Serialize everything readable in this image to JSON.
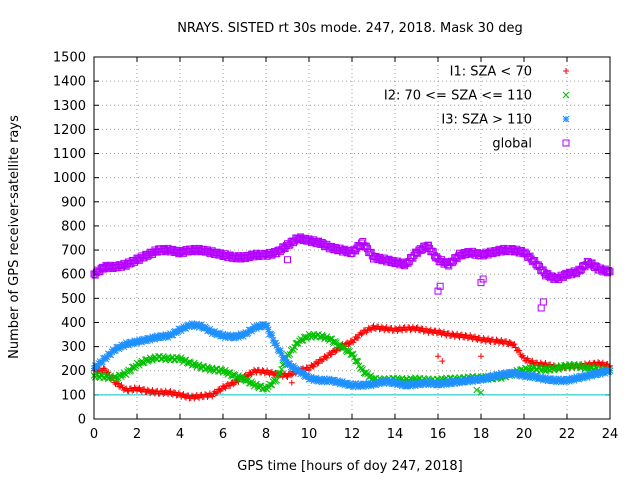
{
  "chart_data": {
    "type": "scatter",
    "title": "NRAYS. SISTED rt 30s mode. 247, 2018. Mask 30 deg",
    "xlabel": "GPS time [hours of doy 247, 2018]",
    "ylabel": "Number of GPS receiver-satellite rays",
    "xlim": [
      0,
      24
    ],
    "ylim": [
      0,
      1500
    ],
    "xticks": [
      "0",
      "2",
      "4",
      "6",
      "8",
      "10",
      "12",
      "14",
      "16",
      "18",
      "20",
      "22",
      "24"
    ],
    "yticks": [
      "0",
      "100",
      "200",
      "300",
      "400",
      "500",
      "600",
      "700",
      "800",
      "900",
      "1000",
      "1100",
      "1200",
      "1300",
      "1400",
      "1500"
    ],
    "grid": true,
    "legend_position": "top-right",
    "threshold_line": {
      "y": 100,
      "color": "#00c8c8"
    },
    "series": [
      {
        "name": "I1: SZA < 70",
        "marker": "+",
        "color": "#ff0000",
        "x": [
          0,
          0.5,
          1,
          1.5,
          2,
          2.5,
          3,
          3.5,
          4,
          4.5,
          5,
          5.5,
          6,
          6.5,
          7,
          7.5,
          8,
          8.5,
          9,
          9.5,
          10,
          10.5,
          11,
          11.5,
          12,
          12.5,
          13,
          13.5,
          14,
          14.5,
          15,
          15.5,
          16,
          16.5,
          17,
          17.5,
          18,
          18.5,
          19,
          19.5,
          20,
          20.5,
          21,
          21.5,
          22,
          22.5,
          23,
          23.5,
          24
        ],
        "y": [
          200,
          205,
          150,
          120,
          125,
          115,
          110,
          110,
          100,
          90,
          95,
          100,
          130,
          150,
          175,
          200,
          195,
          185,
          180,
          200,
          210,
          240,
          270,
          300,
          320,
          360,
          380,
          375,
          370,
          375,
          375,
          365,
          360,
          350,
          345,
          340,
          330,
          325,
          320,
          310,
          250,
          230,
          225,
          215,
          215,
          220,
          225,
          230,
          220
        ]
      },
      {
        "name": "I2: 70 <= SZA <= 110",
        "marker": "x",
        "color": "#00c000",
        "x": [
          0,
          0.5,
          1,
          1.5,
          2,
          2.5,
          3,
          3.5,
          4,
          4.5,
          5,
          5.5,
          6,
          6.5,
          7,
          7.5,
          8,
          8.5,
          9,
          9.5,
          10,
          10.5,
          11,
          11.5,
          12,
          12.5,
          13,
          13.5,
          14,
          14.5,
          15,
          15.5,
          16,
          16.5,
          17,
          17.5,
          18,
          18.5,
          19,
          19.5,
          20,
          20.5,
          21,
          21.5,
          22,
          22.5,
          23,
          23.5,
          24
        ],
        "y": [
          180,
          175,
          170,
          190,
          225,
          245,
          255,
          250,
          250,
          230,
          215,
          205,
          200,
          180,
          165,
          140,
          125,
          165,
          260,
          320,
          345,
          345,
          330,
          300,
          270,
          200,
          165,
          160,
          165,
          160,
          165,
          160,
          160,
          165,
          165,
          170,
          170,
          170,
          175,
          190,
          205,
          210,
          205,
          210,
          220,
          220,
          210,
          205,
          200
        ]
      },
      {
        "name": "I3: SZA > 110",
        "marker": "*",
        "color": "#1e90ff",
        "x": [
          0,
          0.5,
          1,
          1.5,
          2,
          2.5,
          3,
          3.5,
          4,
          4.5,
          5,
          5.5,
          6,
          6.5,
          7,
          7.5,
          8,
          8.5,
          9,
          9.5,
          10,
          10.5,
          11,
          11.5,
          12,
          12.5,
          13,
          13.5,
          14,
          14.5,
          15,
          15.5,
          16,
          16.5,
          17,
          17.5,
          18,
          18.5,
          19,
          19.5,
          20,
          20.5,
          21,
          21.5,
          22,
          22.5,
          23,
          23.5,
          24
        ],
        "y": [
          210,
          250,
          290,
          310,
          320,
          330,
          340,
          345,
          370,
          390,
          385,
          360,
          345,
          340,
          350,
          380,
          390,
          300,
          230,
          200,
          170,
          160,
          160,
          150,
          140,
          140,
          145,
          155,
          150,
          140,
          145,
          150,
          145,
          150,
          155,
          160,
          165,
          175,
          185,
          190,
          180,
          175,
          165,
          160,
          160,
          170,
          180,
          190,
          200
        ]
      },
      {
        "name": "global",
        "marker": "square",
        "color": "#b400ff",
        "x": [
          0,
          0.5,
          1,
          1.5,
          2,
          2.5,
          3,
          3.5,
          4,
          4.5,
          5,
          5.5,
          6,
          6.5,
          7,
          7.5,
          8,
          8.5,
          9,
          9.5,
          10,
          10.5,
          11,
          11.5,
          12,
          12.5,
          13,
          13.5,
          14,
          14.5,
          15,
          15.5,
          16,
          16.5,
          17,
          17.5,
          18,
          18.5,
          19,
          19.5,
          20,
          20.5,
          21,
          21.5,
          22,
          22.5,
          23,
          23.5,
          24
        ],
        "y": [
          600,
          630,
          630,
          640,
          660,
          680,
          700,
          700,
          690,
          700,
          700,
          690,
          680,
          670,
          670,
          680,
          680,
          690,
          720,
          750,
          740,
          730,
          710,
          700,
          690,
          730,
          670,
          660,
          650,
          640,
          690,
          720,
          660,
          640,
          680,
          690,
          680,
          690,
          700,
          700,
          690,
          650,
          600,
          580,
          600,
          610,
          650,
          620,
          610
        ]
      }
    ],
    "outliers": {
      "I1: SZA < 70": {
        "x": [
          9.2,
          16.0,
          16.2,
          18.0
        ],
        "y": [
          150,
          260,
          240,
          260
        ]
      },
      "I2: 70 <= SZA <= 110": {
        "x": [
          17.8,
          18.0
        ],
        "y": [
          120,
          110
        ]
      },
      "global": {
        "x": [
          16.0,
          16.1,
          18.0,
          18.1,
          20.8,
          20.9,
          9.0
        ],
        "y": [
          530,
          550,
          565,
          580,
          460,
          485,
          660
        ]
      }
    }
  }
}
